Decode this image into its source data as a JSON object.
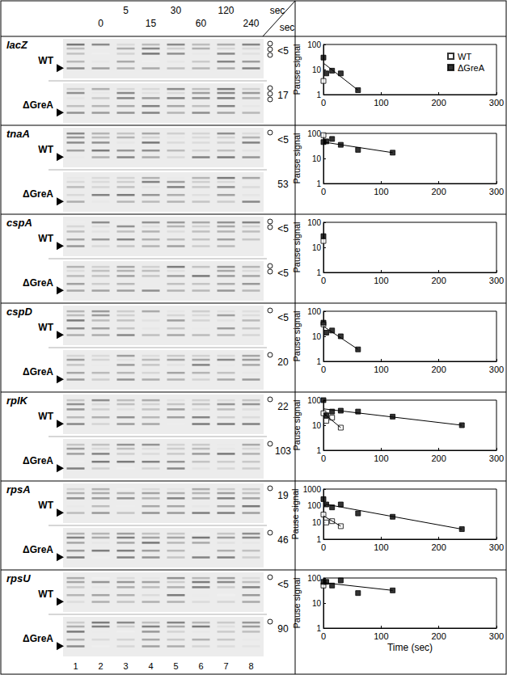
{
  "panel": {
    "time_header": {
      "upper": [
        "5",
        "30",
        "120"
      ],
      "lower": [
        "0",
        "15",
        "60",
        "240"
      ],
      "unit": "sec",
      "corner_unit": "sec"
    },
    "lanes": [
      1,
      2,
      3,
      4,
      5,
      6,
      7,
      8
    ],
    "rows": [
      {
        "gene": "lacZ",
        "conditions": [
          {
            "label": "WT",
            "half_life": "<5",
            "pause_marks": 3
          },
          {
            "label": "ΔGreA",
            "half_life": "17",
            "pause_marks": 3
          }
        ]
      },
      {
        "gene": "tnaA",
        "conditions": [
          {
            "label": "WT",
            "half_life": "<5",
            "pause_marks": 1
          },
          {
            "label": "ΔGreA",
            "half_life": "53",
            "pause_marks": 0
          }
        ]
      },
      {
        "gene": "cspA",
        "conditions": [
          {
            "label": "WT",
            "half_life": "<5",
            "pause_marks": 2
          },
          {
            "label": "ΔGreA",
            "half_life": "<5",
            "pause_marks": 2
          }
        ]
      },
      {
        "gene": "cspD",
        "conditions": [
          {
            "label": "WT",
            "half_life": "<5",
            "pause_marks": 1
          },
          {
            "label": "ΔGreA",
            "half_life": "20",
            "pause_marks": 1
          }
        ]
      },
      {
        "gene": "rplK",
        "conditions": [
          {
            "label": "WT",
            "half_life": "22",
            "pause_marks": 1
          },
          {
            "label": "ΔGreA",
            "half_life": "103",
            "pause_marks": 1
          }
        ]
      },
      {
        "gene": "rpsA",
        "conditions": [
          {
            "label": "WT",
            "half_life": "19",
            "pause_marks": 1
          },
          {
            "label": "ΔGreA",
            "half_life": "46",
            "pause_marks": 1
          }
        ]
      },
      {
        "gene": "rpsU",
        "conditions": [
          {
            "label": "WT",
            "half_life": "<5",
            "pause_marks": 1
          },
          {
            "label": "ΔGreA",
            "half_life": "90",
            "pause_marks": 1
          }
        ]
      }
    ]
  },
  "chart_data": [
    {
      "type": "scatter",
      "y_label": "Pause signal",
      "log": "y",
      "legend": "upper right",
      "xlim": [
        0,
        300
      ],
      "xticks": [
        0,
        100,
        200,
        300
      ],
      "ylim": [
        1,
        100
      ],
      "yticks": [
        1,
        10,
        100
      ],
      "series": [
        {
          "name": "WT",
          "color": "#000000",
          "marker": "open square",
          "x": [
            0
          ],
          "values": [
            3.5
          ]
        },
        {
          "name": "ΔGreA",
          "color": "#000000",
          "marker": "filled square",
          "x": [
            0,
            5,
            15,
            30,
            60
          ],
          "values": [
            30,
            7,
            9,
            7,
            1.5
          ]
        }
      ],
      "fits": [
        {
          "color": "#000000",
          "x": [
            0,
            60
          ],
          "values": [
            18,
            1.5
          ]
        }
      ]
    },
    {
      "type": "scatter",
      "y_label": "Pause signal",
      "log": "y",
      "xlim": [
        0,
        300
      ],
      "xticks": [
        0,
        100,
        200,
        300
      ],
      "ylim": [
        1,
        100
      ],
      "yticks": [
        1,
        10,
        100
      ],
      "series": [
        {
          "name": "WT",
          "color": "#000000",
          "marker": "open square",
          "x": [
            0
          ],
          "values": [
            85
          ]
        },
        {
          "name": "ΔGreA",
          "color": "#000000",
          "marker": "filled square",
          "x": [
            0,
            5,
            15,
            30,
            60,
            120
          ],
          "values": [
            45,
            48,
            60,
            35,
            22,
            17
          ]
        }
      ],
      "fits": [
        {
          "color": "#000000",
          "x": [
            0,
            120
          ],
          "values": [
            45,
            17
          ]
        }
      ]
    },
    {
      "type": "scatter",
      "y_label": "Pause signal",
      "log": "y",
      "xlim": [
        0,
        300
      ],
      "xticks": [
        0,
        100,
        200,
        300
      ],
      "ylim": [
        1,
        100
      ],
      "yticks": [
        1,
        10,
        100
      ],
      "series": [
        {
          "name": "WT",
          "color": "#000000",
          "marker": "open square",
          "x": [
            0
          ],
          "values": [
            18
          ]
        },
        {
          "name": "ΔGreA",
          "color": "#000000",
          "marker": "filled square",
          "x": [
            0
          ],
          "values": [
            28
          ]
        }
      ],
      "fits": []
    },
    {
      "type": "scatter",
      "y_label": "Pause signal",
      "log": "y",
      "xlim": [
        0,
        300
      ],
      "xticks": [
        0,
        100,
        200,
        300
      ],
      "ylim": [
        1,
        100
      ],
      "yticks": [
        1,
        10,
        100
      ],
      "series": [
        {
          "name": "WT",
          "color": "#000000",
          "marker": "open square",
          "x": [
            0
          ],
          "values": [
            30
          ]
        },
        {
          "name": "ΔGreA",
          "color": "#000000",
          "marker": "filled square",
          "x": [
            0,
            5,
            15,
            30,
            60
          ],
          "values": [
            35,
            14,
            17,
            10,
            3
          ]
        }
      ],
      "fits": [
        {
          "color": "#000000",
          "x": [
            0,
            60
          ],
          "values": [
            25,
            3
          ]
        }
      ]
    },
    {
      "type": "scatter",
      "y_label": "Pause signal",
      "log": "y",
      "xlim": [
        0,
        300
      ],
      "xticks": [
        0,
        100,
        200,
        300
      ],
      "ylim": [
        1,
        100
      ],
      "yticks": [
        1,
        10,
        100
      ],
      "series": [
        {
          "name": "WT",
          "color": "#000000",
          "marker": "open square",
          "x": [
            0,
            5,
            15,
            30
          ],
          "values": [
            30,
            15,
            20,
            8
          ]
        },
        {
          "name": "ΔGreA",
          "color": "#000000",
          "marker": "filled square",
          "x": [
            0,
            5,
            15,
            30,
            60,
            120,
            240
          ],
          "values": [
            100,
            25,
            35,
            38,
            35,
            22,
            10
          ]
        }
      ],
      "fits": [
        {
          "color": "#000000",
          "x": [
            0,
            30
          ],
          "values": [
            30,
            8
          ]
        },
        {
          "color": "#000000",
          "x": [
            0,
            240
          ],
          "values": [
            45,
            10
          ]
        }
      ]
    },
    {
      "type": "scatter",
      "y_label": "Pause signal",
      "log": "y",
      "xlim": [
        0,
        300
      ],
      "xticks": [
        0,
        100,
        200,
        300
      ],
      "ylim": [
        1,
        1000
      ],
      "yticks": [
        1,
        10,
        100,
        1000
      ],
      "series": [
        {
          "name": "WT",
          "color": "#000000",
          "marker": "open square",
          "x": [
            0,
            5,
            15,
            30
          ],
          "values": [
            30,
            10,
            12,
            6
          ]
        },
        {
          "name": "ΔGreA",
          "color": "#000000",
          "marker": "filled square",
          "x": [
            0,
            5,
            15,
            30,
            60,
            120,
            240
          ],
          "values": [
            250,
            120,
            80,
            120,
            35,
            22,
            4
          ]
        }
      ],
      "fits": [
        {
          "color": "#000000",
          "x": [
            0,
            30
          ],
          "values": [
            25,
            6
          ]
        },
        {
          "color": "#000000",
          "x": [
            0,
            240
          ],
          "values": [
            130,
            4
          ]
        }
      ]
    },
    {
      "type": "scatter",
      "y_label": "Pause signal",
      "x_label": "Time (sec)",
      "log": "y",
      "xlim": [
        0,
        300
      ],
      "xticks": [
        0,
        100,
        200,
        300
      ],
      "ylim": [
        1,
        100
      ],
      "yticks": [
        1,
        10,
        100
      ],
      "series": [
        {
          "name": "WT",
          "color": "#000000",
          "marker": "open square",
          "x": [
            0
          ],
          "values": [
            50
          ]
        },
        {
          "name": "ΔGreA",
          "color": "#000000",
          "marker": "filled square",
          "x": [
            0,
            5,
            15,
            30,
            60,
            120
          ],
          "values": [
            70,
            70,
            50,
            80,
            25,
            32
          ]
        }
      ],
      "fits": [
        {
          "color": "#000000",
          "x": [
            0,
            120
          ],
          "values": [
            65,
            32
          ]
        }
      ]
    }
  ]
}
